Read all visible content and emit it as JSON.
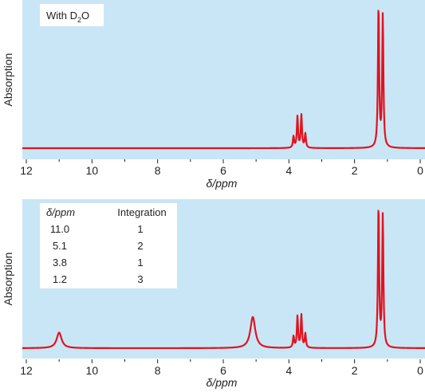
{
  "chart_data": [
    {
      "type": "line",
      "panel": "top",
      "xlabel": "δ/ppm",
      "ylabel": "Absorption",
      "xlim": [
        12,
        0
      ],
      "x_reversed": true,
      "x_ticks": [
        "12",
        "10",
        "8",
        "6",
        "4",
        "2",
        "0"
      ],
      "annotation": {
        "text": "With D",
        "sub": "2",
        "tail": "O"
      },
      "peaks": [
        {
          "shift": 3.86,
          "height": 0.08
        },
        {
          "shift": 3.74,
          "height": 0.22
        },
        {
          "shift": 3.62,
          "height": 0.23
        },
        {
          "shift": 3.5,
          "height": 0.1
        },
        {
          "shift": 1.27,
          "height": 1.0
        },
        {
          "shift": 1.14,
          "height": 0.93
        }
      ]
    },
    {
      "type": "line",
      "panel": "bottom",
      "xlabel": "δ/ppm",
      "ylabel": "Absorption",
      "xlim": [
        12,
        0
      ],
      "x_reversed": true,
      "x_ticks": [
        "12",
        "10",
        "8",
        "6",
        "4",
        "2",
        "0"
      ],
      "table": {
        "headers": [
          "δ/ppm",
          "Integration"
        ],
        "rows": [
          [
            "11.0",
            "1"
          ],
          [
            "5.1",
            "2"
          ],
          [
            "3.8",
            "1"
          ],
          [
            "1.2",
            "3"
          ]
        ]
      },
      "peaks": [
        {
          "shift": 11.0,
          "height": 0.11,
          "broad": true
        },
        {
          "shift": 5.1,
          "height": 0.22,
          "broad": true
        },
        {
          "shift": 3.86,
          "height": 0.08
        },
        {
          "shift": 3.74,
          "height": 0.22
        },
        {
          "shift": 3.62,
          "height": 0.23
        },
        {
          "shift": 3.5,
          "height": 0.1
        },
        {
          "shift": 1.27,
          "height": 1.0
        },
        {
          "shift": 1.14,
          "height": 0.93
        }
      ]
    }
  ],
  "colors": {
    "panel_bg": "#c9e6f6",
    "trace": "#e0131f",
    "inset_bg": "#ffffff",
    "text": "#231f20"
  }
}
